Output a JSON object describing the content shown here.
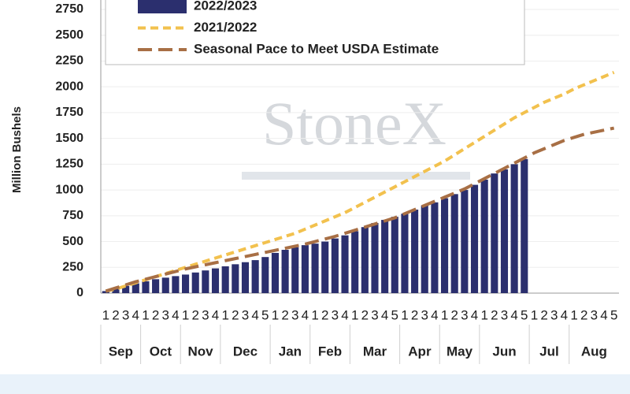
{
  "chart_data": {
    "type": "bar",
    "y_label": "Million Bushels",
    "watermark": "StoneX",
    "categories": [
      "1",
      "2",
      "3",
      "4",
      "1",
      "2",
      "3",
      "4",
      "1",
      "2",
      "3",
      "4",
      "1",
      "2",
      "3",
      "4",
      "5",
      "1",
      "2",
      "3",
      "4",
      "1",
      "2",
      "3",
      "4",
      "1",
      "2",
      "3",
      "4",
      "5",
      "1",
      "2",
      "3",
      "4",
      "1",
      "2",
      "3",
      "4",
      "1",
      "2",
      "3",
      "4",
      "5",
      "1",
      "2",
      "3",
      "4",
      "1",
      "2",
      "3",
      "4",
      "5"
    ],
    "months": [
      "Sep",
      "Oct",
      "Nov",
      "Dec",
      "Jan",
      "Feb",
      "Mar",
      "Apr",
      "May",
      "Jun",
      "Jul",
      "Aug"
    ],
    "series": [
      {
        "name": "2022/2023",
        "kind": "bar",
        "color": "#2b2f6e",
        "values": [
          20,
          45,
          70,
          95,
          115,
          135,
          150,
          165,
          180,
          200,
          220,
          240,
          260,
          280,
          300,
          320,
          350,
          390,
          420,
          445,
          465,
          480,
          500,
          530,
          560,
          600,
          640,
          680,
          710,
          740,
          770,
          810,
          850,
          880,
          920,
          960,
          1000,
          1050,
          1100,
          1160,
          1200,
          1250,
          1300,
          null,
          null,
          null,
          null,
          null,
          null,
          null,
          null,
          null
        ]
      },
      {
        "name": "2021/2022",
        "kind": "line",
        "color": "#f2c14e",
        "dash": "10,6",
        "values": [
          20,
          40,
          70,
          100,
          130,
          160,
          190,
          220,
          250,
          280,
          310,
          340,
          370,
          400,
          430,
          460,
          490,
          520,
          550,
          580,
          620,
          660,
          700,
          740,
          780,
          830,
          880,
          930,
          980,
          1030,
          1080,
          1130,
          1180,
          1230,
          1280,
          1340,
          1400,
          1460,
          1520,
          1580,
          1640,
          1700,
          1750,
          1800,
          1850,
          1890,
          1930,
          1980,
          2020,
          2060,
          2100,
          2140
        ]
      },
      {
        "name": "Seasonal Pace to Meet USDA Estimate",
        "kind": "line",
        "color": "#a86f45",
        "dash": "18,8",
        "values": [
          20,
          50,
          80,
          110,
          135,
          160,
          185,
          210,
          235,
          255,
          275,
          295,
          315,
          335,
          355,
          375,
          395,
          415,
          435,
          455,
          475,
          500,
          525,
          550,
          580,
          610,
          640,
          670,
          700,
          730,
          770,
          810,
          850,
          890,
          930,
          970,
          1010,
          1060,
          1110,
          1160,
          1210,
          1260,
          1310,
          1360,
          1400,
          1440,
          1480,
          1510,
          1540,
          1560,
          1580,
          1600
        ]
      }
    ],
    "ylim": [
      0,
      2750
    ],
    "yticks": [
      0,
      250,
      500,
      750,
      1000,
      1250,
      1500,
      1750,
      2000,
      2250,
      2500,
      2750
    ],
    "grid": true
  }
}
